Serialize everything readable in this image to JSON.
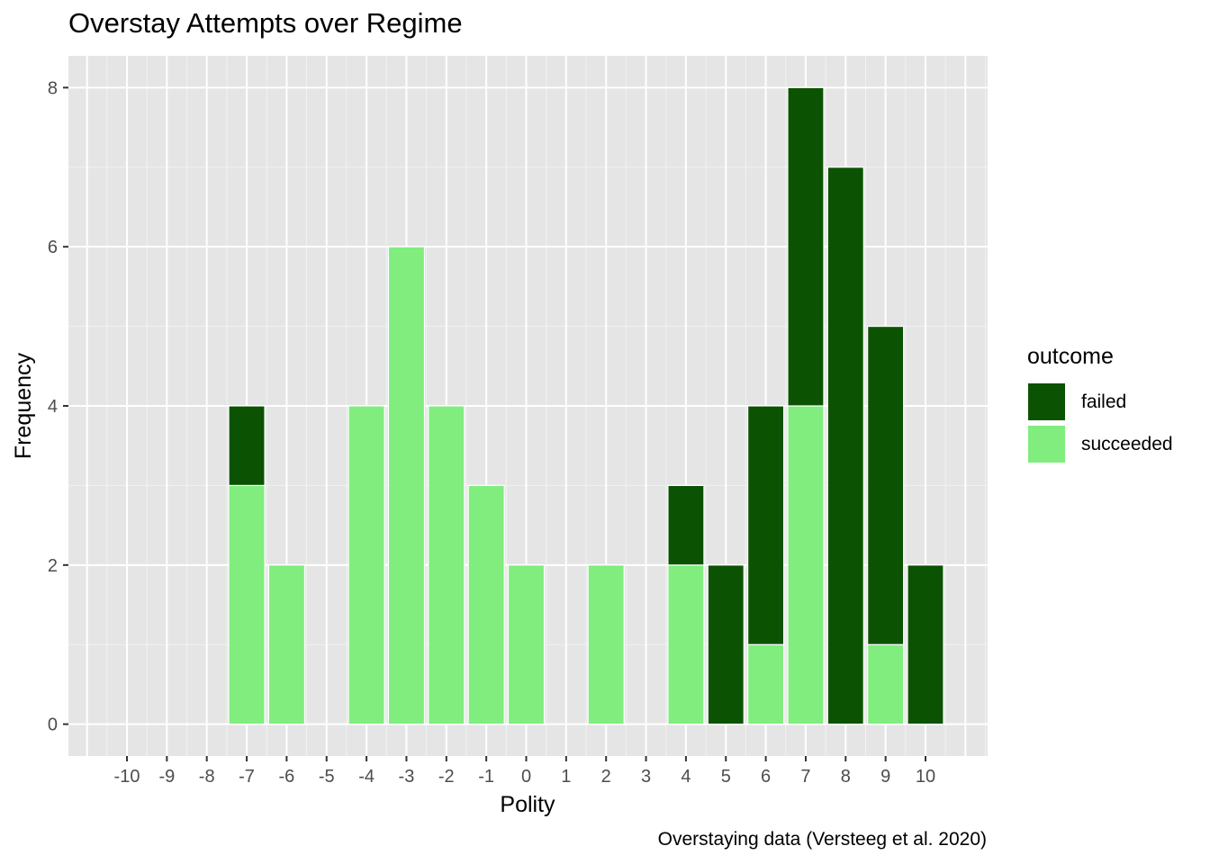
{
  "chart_data": {
    "type": "bar",
    "stacked": true,
    "title": "Overstay Attempts over Regime",
    "xlabel": "Polity",
    "ylabel": "Frequency",
    "caption": "Overstaying data (Versteeg et al. 2020)",
    "categories": [
      "-10",
      "-9",
      "-8",
      "-7",
      "-6",
      "-5",
      "-4",
      "-3",
      "-2",
      "-1",
      "0",
      "1",
      "2",
      "3",
      "4",
      "5",
      "6",
      "7",
      "8",
      "9",
      "10"
    ],
    "series": [
      {
        "name": "failed",
        "color": "#0b5302",
        "values": [
          0,
          0,
          0,
          1,
          0,
          0,
          0,
          0,
          0,
          0,
          0,
          0,
          0,
          0,
          1,
          2,
          3,
          4,
          7,
          4,
          2
        ]
      },
      {
        "name": "succeeded",
        "color": "#80ed7e",
        "values": [
          0,
          0,
          0,
          3,
          2,
          0,
          4,
          6,
          4,
          3,
          2,
          0,
          2,
          0,
          2,
          0,
          1,
          4,
          0,
          1,
          0
        ]
      }
    ],
    "yticks": [
      "0",
      "2",
      "4",
      "6",
      "8"
    ],
    "ylim": [
      -0.4,
      8.4
    ],
    "legend": {
      "title": "outcome",
      "position": "right"
    },
    "grid": true
  }
}
